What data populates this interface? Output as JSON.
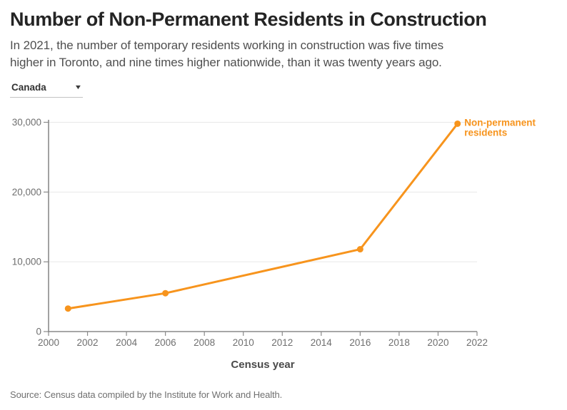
{
  "header": {
    "title": "Number of Non-Permanent Residents in Construction",
    "subtitle_line1": "In 2021, the number of temporary residents working in construction was five times",
    "subtitle_line2": "higher in Toronto, and nine times higher nationwide, than it was twenty years ago."
  },
  "controls": {
    "region_select": {
      "value": "Canada",
      "caret": "▼"
    }
  },
  "chart_data": {
    "type": "line",
    "title": "Number of Non-Permanent Residents in Construction",
    "xlabel": "Census year",
    "ylabel": "",
    "xlim": [
      2000,
      2022
    ],
    "ylim": [
      0,
      30000
    ],
    "x_ticks": [
      2000,
      2002,
      2004,
      2006,
      2008,
      2010,
      2012,
      2014,
      2016,
      2018,
      2020,
      2022
    ],
    "y_ticks": [
      0,
      10000,
      20000,
      30000
    ],
    "grid": "horizontal",
    "legend_position": "end-of-line-label",
    "x": [
      2001,
      2006,
      2016,
      2021
    ],
    "series": [
      {
        "name": "Non-permanent residents",
        "label_lines": [
          "Non-permanent",
          "residents"
        ],
        "values": [
          3300,
          5500,
          11800,
          29800
        ],
        "color": "#f7941d"
      }
    ]
  },
  "footer": {
    "source": "Source: Census data compiled by the Institute for Work and Health."
  },
  "colors": {
    "accent": "#f7941d",
    "title_text": "#242424",
    "subtitle_text": "#4f4f4f",
    "axis_line": "#8a8a8a",
    "tick_label": "#6f6f6f",
    "axis_label": "#4a4a4a",
    "grid_line": "#e8e8e8",
    "source_text": "#707070"
  }
}
